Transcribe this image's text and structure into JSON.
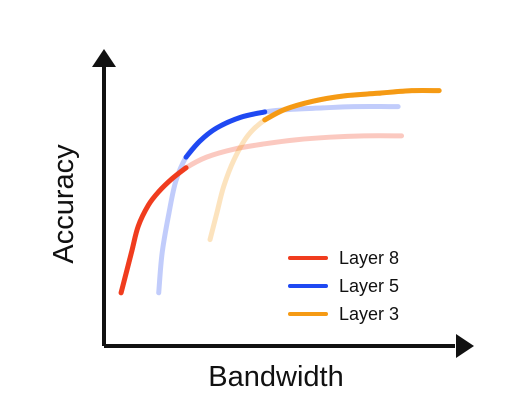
{
  "chart_data": {
    "type": "line",
    "xlabel": "Bandwidth",
    "ylabel": "Accuracy",
    "xlim": [
      0,
      100
    ],
    "ylim": [
      0,
      100
    ],
    "legend_position": "bottom-right",
    "grid": false,
    "series": [
      {
        "name": "Layer 8",
        "color": "#f03c1e",
        "points": [
          [
            5,
            20
          ],
          [
            8,
            35
          ],
          [
            10,
            45
          ],
          [
            13,
            53
          ],
          [
            16,
            58
          ],
          [
            20,
            63
          ],
          [
            24,
            67
          ],
          [
            30,
            71
          ],
          [
            38,
            74
          ],
          [
            47,
            76
          ],
          [
            56,
            77.5
          ],
          [
            66,
            78.5
          ],
          [
            76,
            79
          ],
          [
            87,
            79
          ]
        ],
        "emphasis_xlim": [
          5,
          24
        ]
      },
      {
        "name": "Layer 5",
        "color": "#1f49f2",
        "points": [
          [
            16,
            20
          ],
          [
            17,
            35
          ],
          [
            19,
            50
          ],
          [
            21,
            62
          ],
          [
            24,
            71
          ],
          [
            28,
            77
          ],
          [
            33,
            82
          ],
          [
            40,
            86
          ],
          [
            47,
            88
          ],
          [
            55,
            89
          ],
          [
            64,
            89.5
          ],
          [
            73,
            90
          ],
          [
            86,
            90
          ]
        ],
        "emphasis_xlim": [
          24,
          48
        ]
      },
      {
        "name": "Layer 3",
        "color": "#f59a14",
        "points": [
          [
            31,
            40
          ],
          [
            33,
            50
          ],
          [
            35,
            60
          ],
          [
            38,
            70
          ],
          [
            42,
            79
          ],
          [
            47,
            85
          ],
          [
            53,
            89
          ],
          [
            61,
            92
          ],
          [
            70,
            94
          ],
          [
            80,
            95
          ],
          [
            90,
            96
          ],
          [
            98,
            96
          ]
        ],
        "emphasis_xlim": [
          47,
          98
        ]
      }
    ]
  }
}
